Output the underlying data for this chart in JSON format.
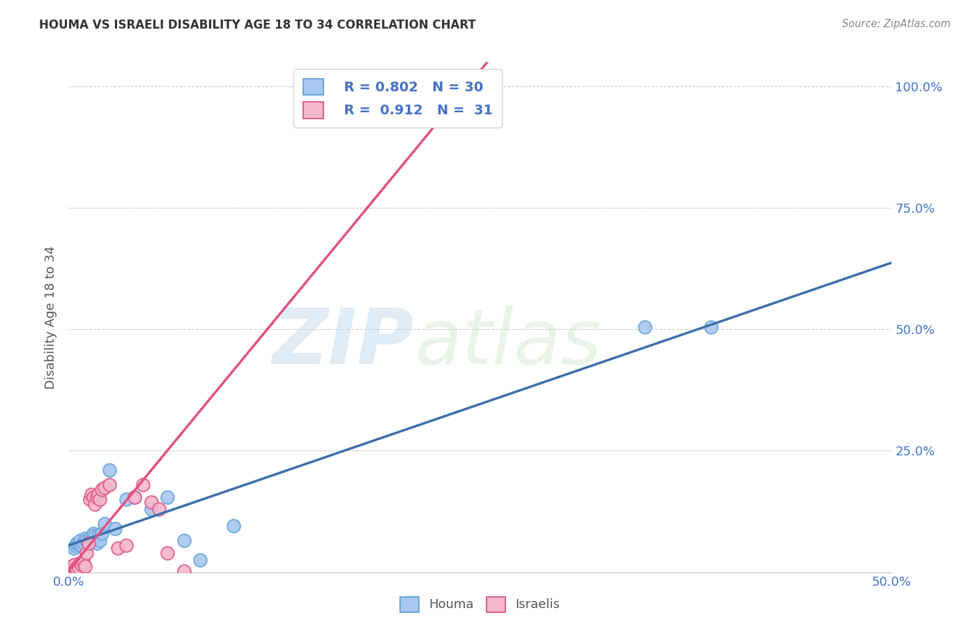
{
  "title": "HOUMA VS ISRAELI DISABILITY AGE 18 TO 34 CORRELATION CHART",
  "source": "Source: ZipAtlas.com",
  "ylabel_label": "Disability Age 18 to 34",
  "x_min": 0.0,
  "x_max": 0.5,
  "y_min": 0.0,
  "y_max": 1.05,
  "x_ticks": [
    0.0,
    0.1,
    0.2,
    0.3,
    0.4,
    0.5
  ],
  "x_tick_labels": [
    "0.0%",
    "",
    "",
    "",
    "",
    "50.0%"
  ],
  "y_ticks": [
    0.0,
    0.25,
    0.5,
    0.75,
    1.0
  ],
  "y_tick_labels_right": [
    "",
    "25.0%",
    "50.0%",
    "75.0%",
    "100.0%"
  ],
  "houma_color": "#6fa8dc",
  "houma_color_fill": "#a8c8f0",
  "israeli_color": "#e06090",
  "israeli_color_fill": "#f4b8cc",
  "houma_line_color": "#3d6fa8",
  "israeli_line_color": "#e05080",
  "legend_R_houma": "R = 0.802",
  "legend_N_houma": "N = 30",
  "legend_R_israeli": "R =  0.912",
  "legend_N_israeli": "N =  31",
  "watermark_zip": "ZIP",
  "watermark_atlas": "atlas",
  "background_color": "#ffffff",
  "grid_color": "#cccccc",
  "houma_scatter_x": [
    0.003,
    0.004,
    0.005,
    0.006,
    0.007,
    0.008,
    0.009,
    0.01,
    0.011,
    0.012,
    0.013,
    0.014,
    0.015,
    0.016,
    0.017,
    0.018,
    0.019,
    0.02,
    0.022,
    0.025,
    0.028,
    0.035,
    0.04,
    0.05,
    0.06,
    0.07,
    0.08,
    0.1,
    0.35,
    0.39
  ],
  "houma_scatter_y": [
    0.05,
    0.055,
    0.06,
    0.06,
    0.065,
    0.055,
    0.06,
    0.07,
    0.065,
    0.06,
    0.07,
    0.065,
    0.08,
    0.075,
    0.06,
    0.075,
    0.065,
    0.08,
    0.1,
    0.21,
    0.09,
    0.15,
    0.155,
    0.13,
    0.155,
    0.065,
    0.025,
    0.095,
    0.505,
    0.505
  ],
  "israeli_scatter_x": [
    0.001,
    0.002,
    0.003,
    0.004,
    0.005,
    0.006,
    0.007,
    0.008,
    0.009,
    0.01,
    0.011,
    0.012,
    0.013,
    0.014,
    0.015,
    0.016,
    0.017,
    0.018,
    0.019,
    0.02,
    0.022,
    0.025,
    0.03,
    0.035,
    0.04,
    0.045,
    0.05,
    0.055,
    0.06,
    0.07,
    0.2
  ],
  "israeli_scatter_y": [
    0.01,
    0.012,
    0.015,
    0.008,
    0.005,
    0.01,
    0.02,
    0.015,
    0.018,
    0.012,
    0.04,
    0.06,
    0.15,
    0.16,
    0.155,
    0.14,
    0.155,
    0.16,
    0.15,
    0.17,
    0.175,
    0.18,
    0.05,
    0.055,
    0.155,
    0.18,
    0.145,
    0.13,
    0.04,
    0.002,
    1.0
  ]
}
